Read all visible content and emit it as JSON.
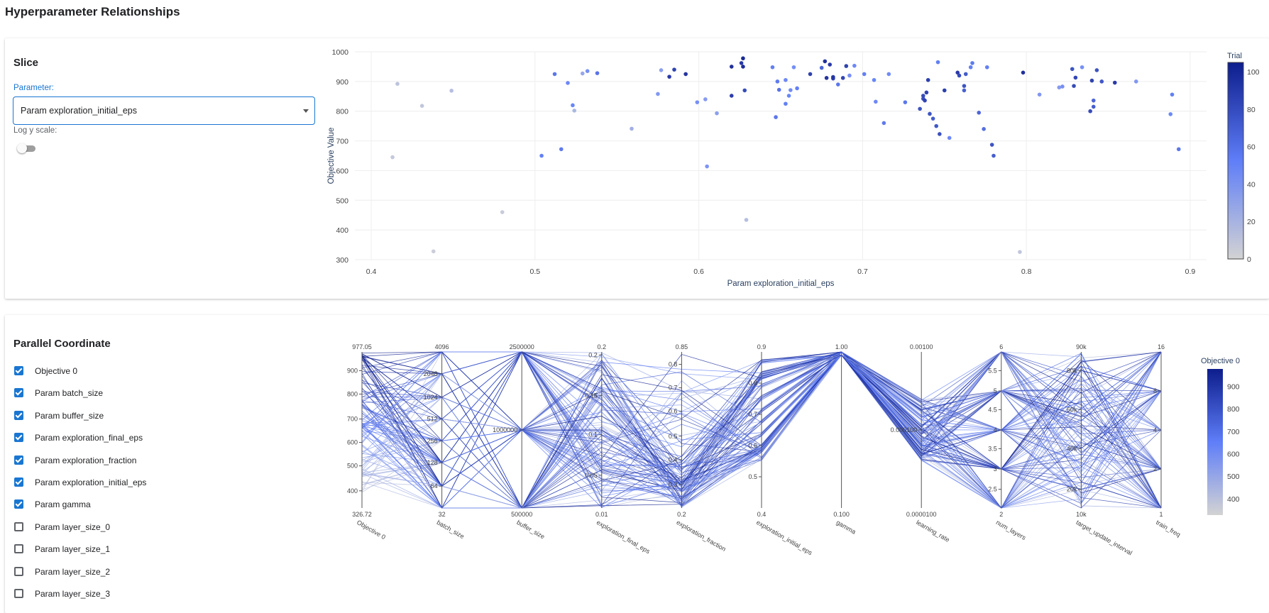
{
  "page_title": "Hyperparameter Relationships",
  "slice": {
    "title": "Slice",
    "parameter_label": "Parameter:",
    "selected_parameter": "Param exploration_initial_eps",
    "log_scale_label": "Log y scale:",
    "log_scale_on": false
  },
  "parallel": {
    "title": "Parallel Coordinate",
    "params": [
      {
        "label": "Objective 0",
        "checked": true
      },
      {
        "label": "Param batch_size",
        "checked": true
      },
      {
        "label": "Param buffer_size",
        "checked": true
      },
      {
        "label": "Param exploration_final_eps",
        "checked": true
      },
      {
        "label": "Param exploration_fraction",
        "checked": true
      },
      {
        "label": "Param exploration_initial_eps",
        "checked": true
      },
      {
        "label": "Param gamma",
        "checked": true
      },
      {
        "label": "Param layer_size_0",
        "checked": false
      },
      {
        "label": "Param layer_size_1",
        "checked": false
      },
      {
        "label": "Param layer_size_2",
        "checked": false
      },
      {
        "label": "Param layer_size_3",
        "checked": false
      }
    ]
  },
  "colors": {
    "accent": "#1976d2",
    "scale_low": "#d3d3d3",
    "scale_high": "#0d1d8c",
    "scale_mid": "#5f7ef8"
  },
  "chart_data": [
    {
      "type": "scatter",
      "xlabel": "Param exploration_initial_eps",
      "ylabel": "Objective Value",
      "xlim": [
        0.39,
        0.91
      ],
      "ylim": [
        300,
        1000
      ],
      "x_ticks": [
        "0.4",
        "0.5",
        "0.6",
        "0.7",
        "0.8",
        "0.9"
      ],
      "y_ticks": [
        "300",
        "400",
        "500",
        "600",
        "700",
        "800",
        "900",
        "1000"
      ],
      "grid": true,
      "colorbar": {
        "title": "Trial",
        "range": [
          0,
          105
        ],
        "ticks": [
          "0",
          "20",
          "40",
          "60",
          "80",
          "100"
        ]
      },
      "points": [
        {
          "x": 0.413,
          "y": 645,
          "t": 8
        },
        {
          "x": 0.416,
          "y": 892,
          "t": 12
        },
        {
          "x": 0.431,
          "y": 818,
          "t": 10
        },
        {
          "x": 0.438,
          "y": 328,
          "t": 5
        },
        {
          "x": 0.449,
          "y": 869,
          "t": 15
        },
        {
          "x": 0.48,
          "y": 460,
          "t": 7
        },
        {
          "x": 0.504,
          "y": 650,
          "t": 55
        },
        {
          "x": 0.512,
          "y": 925,
          "t": 60
        },
        {
          "x": 0.516,
          "y": 672,
          "t": 58
        },
        {
          "x": 0.52,
          "y": 895,
          "t": 50
        },
        {
          "x": 0.523,
          "y": 820,
          "t": 52
        },
        {
          "x": 0.524,
          "y": 802,
          "t": 20
        },
        {
          "x": 0.529,
          "y": 927,
          "t": 30
        },
        {
          "x": 0.532,
          "y": 935,
          "t": 45
        },
        {
          "x": 0.538,
          "y": 928,
          "t": 62
        },
        {
          "x": 0.559,
          "y": 741,
          "t": 25
        },
        {
          "x": 0.575,
          "y": 858,
          "t": 40
        },
        {
          "x": 0.577,
          "y": 938,
          "t": 35
        },
        {
          "x": 0.582,
          "y": 916,
          "t": 95
        },
        {
          "x": 0.585,
          "y": 940,
          "t": 90
        },
        {
          "x": 0.592,
          "y": 925,
          "t": 98
        },
        {
          "x": 0.599,
          "y": 830,
          "t": 45
        },
        {
          "x": 0.604,
          "y": 840,
          "t": 38
        },
        {
          "x": 0.605,
          "y": 614,
          "t": 42
        },
        {
          "x": 0.611,
          "y": 793,
          "t": 35
        },
        {
          "x": 0.62,
          "y": 852,
          "t": 92
        },
        {
          "x": 0.62,
          "y": 950,
          "t": 100
        },
        {
          "x": 0.626,
          "y": 962,
          "t": 96
        },
        {
          "x": 0.627,
          "y": 950,
          "t": 102
        },
        {
          "x": 0.627,
          "y": 978,
          "t": 104
        },
        {
          "x": 0.628,
          "y": 870,
          "t": 85
        },
        {
          "x": 0.629,
          "y": 434,
          "t": 15
        },
        {
          "x": 0.645,
          "y": 948,
          "t": 55
        },
        {
          "x": 0.647,
          "y": 780,
          "t": 60
        },
        {
          "x": 0.648,
          "y": 900,
          "t": 58
        },
        {
          "x": 0.649,
          "y": 872,
          "t": 62
        },
        {
          "x": 0.653,
          "y": 905,
          "t": 50
        },
        {
          "x": 0.653,
          "y": 825,
          "t": 55
        },
        {
          "x": 0.655,
          "y": 852,
          "t": 52
        },
        {
          "x": 0.656,
          "y": 871,
          "t": 48
        },
        {
          "x": 0.658,
          "y": 948,
          "t": 46
        },
        {
          "x": 0.66,
          "y": 877,
          "t": 55
        },
        {
          "x": 0.668,
          "y": 925,
          "t": 90
        },
        {
          "x": 0.675,
          "y": 946,
          "t": 70
        },
        {
          "x": 0.677,
          "y": 968,
          "t": 100
        },
        {
          "x": 0.678,
          "y": 912,
          "t": 98
        },
        {
          "x": 0.68,
          "y": 957,
          "t": 95
        },
        {
          "x": 0.682,
          "y": 915,
          "t": 96
        },
        {
          "x": 0.682,
          "y": 910,
          "t": 92
        },
        {
          "x": 0.685,
          "y": 890,
          "t": 60
        },
        {
          "x": 0.688,
          "y": 912,
          "t": 88
        },
        {
          "x": 0.69,
          "y": 952,
          "t": 90
        },
        {
          "x": 0.692,
          "y": 920,
          "t": 45
        },
        {
          "x": 0.695,
          "y": 953,
          "t": 50
        },
        {
          "x": 0.701,
          "y": 925,
          "t": 55
        },
        {
          "x": 0.707,
          "y": 905,
          "t": 52
        },
        {
          "x": 0.708,
          "y": 832,
          "t": 50
        },
        {
          "x": 0.713,
          "y": 760,
          "t": 58
        },
        {
          "x": 0.716,
          "y": 925,
          "t": 48
        },
        {
          "x": 0.726,
          "y": 830,
          "t": 60
        },
        {
          "x": 0.735,
          "y": 808,
          "t": 80
        },
        {
          "x": 0.737,
          "y": 852,
          "t": 85
        },
        {
          "x": 0.737,
          "y": 842,
          "t": 82
        },
        {
          "x": 0.738,
          "y": 836,
          "t": 88
        },
        {
          "x": 0.739,
          "y": 863,
          "t": 90
        },
        {
          "x": 0.74,
          "y": 905,
          "t": 92
        },
        {
          "x": 0.741,
          "y": 791,
          "t": 80
        },
        {
          "x": 0.743,
          "y": 775,
          "t": 75
        },
        {
          "x": 0.745,
          "y": 750,
          "t": 78
        },
        {
          "x": 0.746,
          "y": 965,
          "t": 55
        },
        {
          "x": 0.747,
          "y": 723,
          "t": 82
        },
        {
          "x": 0.75,
          "y": 870,
          "t": 92
        },
        {
          "x": 0.753,
          "y": 710,
          "t": 50
        },
        {
          "x": 0.758,
          "y": 930,
          "t": 95
        },
        {
          "x": 0.759,
          "y": 920,
          "t": 85
        },
        {
          "x": 0.762,
          "y": 885,
          "t": 80
        },
        {
          "x": 0.762,
          "y": 870,
          "t": 72
        },
        {
          "x": 0.763,
          "y": 925,
          "t": 76
        },
        {
          "x": 0.766,
          "y": 948,
          "t": 55
        },
        {
          "x": 0.767,
          "y": 962,
          "t": 58
        },
        {
          "x": 0.771,
          "y": 795,
          "t": 70
        },
        {
          "x": 0.774,
          "y": 740,
          "t": 65
        },
        {
          "x": 0.776,
          "y": 948,
          "t": 55
        },
        {
          "x": 0.779,
          "y": 687,
          "t": 80
        },
        {
          "x": 0.78,
          "y": 650,
          "t": 75
        },
        {
          "x": 0.796,
          "y": 326,
          "t": 10
        },
        {
          "x": 0.798,
          "y": 930,
          "t": 100
        },
        {
          "x": 0.808,
          "y": 856,
          "t": 40
        },
        {
          "x": 0.82,
          "y": 880,
          "t": 38
        },
        {
          "x": 0.822,
          "y": 883,
          "t": 45
        },
        {
          "x": 0.828,
          "y": 942,
          "t": 80
        },
        {
          "x": 0.829,
          "y": 885,
          "t": 85
        },
        {
          "x": 0.83,
          "y": 913,
          "t": 88
        },
        {
          "x": 0.834,
          "y": 948,
          "t": 45
        },
        {
          "x": 0.839,
          "y": 800,
          "t": 85
        },
        {
          "x": 0.84,
          "y": 903,
          "t": 90
        },
        {
          "x": 0.841,
          "y": 815,
          "t": 75
        },
        {
          "x": 0.841,
          "y": 836,
          "t": 70
        },
        {
          "x": 0.843,
          "y": 938,
          "t": 80
        },
        {
          "x": 0.846,
          "y": 900,
          "t": 78
        },
        {
          "x": 0.854,
          "y": 896,
          "t": 95
        },
        {
          "x": 0.867,
          "y": 900,
          "t": 40
        },
        {
          "x": 0.888,
          "y": 790,
          "t": 50
        },
        {
          "x": 0.889,
          "y": 856,
          "t": 55
        },
        {
          "x": 0.893,
          "y": 672,
          "t": 60
        }
      ]
    },
    {
      "type": "parallel_coordinates",
      "colorbar": {
        "title": "Objective 0",
        "range": [
          326.72,
          977.05
        ],
        "ticks": [
          "400",
          "500",
          "600",
          "700",
          "800",
          "900"
        ]
      },
      "axes": [
        {
          "name": "Objective 0",
          "min_label": "326.72",
          "max_label": "977.05",
          "ticks": [
            [
              "900",
              0.88
            ],
            [
              "800",
              0.73
            ],
            [
              "700",
              0.57
            ],
            [
              "600",
              0.42
            ],
            [
              "500",
              0.27
            ],
            [
              "400",
              0.11
            ]
          ]
        },
        {
          "name": "batch_size",
          "min_label": "32",
          "max_label": "4096",
          "ticks": [
            [
              "2048",
              0.86
            ],
            [
              "1024",
              0.71
            ],
            [
              "512",
              0.57
            ],
            [
              "256",
              0.43
            ],
            [
              "128",
              0.29
            ],
            [
              "64",
              0.14
            ]
          ]
        },
        {
          "name": "buffer_size",
          "min_label": "500000",
          "max_label": "2500000",
          "ticks": [
            [
              "1000000",
              0.5
            ]
          ]
        },
        {
          "name": "exploration_final_eps",
          "min_label": "0.01",
          "max_label": "0.2",
          "ticks": [
            [
              "0.2",
              0.98
            ],
            [
              "0.15",
              0.72
            ],
            [
              "0.1",
              0.47
            ],
            [
              "0.05",
              0.21
            ]
          ]
        },
        {
          "name": "exploration_fraction",
          "min_label": "0.2",
          "max_label": "0.85",
          "ticks": [
            [
              "0.8",
              0.92
            ],
            [
              "0.7",
              0.77
            ],
            [
              "0.6",
              0.62
            ],
            [
              "0.5",
              0.46
            ],
            [
              "0.4",
              0.31
            ],
            [
              "0.3",
              0.15
            ]
          ]
        },
        {
          "name": "exploration_initial_eps",
          "min_label": "0.4",
          "max_label": "0.9",
          "ticks": [
            [
              "0.8",
              0.8
            ],
            [
              "0.7",
              0.6
            ],
            [
              "0.6",
              0.4
            ],
            [
              "0.5",
              0.2
            ]
          ]
        },
        {
          "name": "gamma",
          "min_label": "0.100",
          "max_label": "1.00",
          "ticks": []
        },
        {
          "name": "learning_rate",
          "min_label": "0.0000100",
          "max_label": "0.00100",
          "ticks": [
            [
              "0.000100",
              0.5
            ]
          ]
        },
        {
          "name": "num_layers",
          "min_label": "2",
          "max_label": "6",
          "ticks": [
            [
              "5.5",
              0.88
            ],
            [
              "5",
              0.75
            ],
            [
              "4.5",
              0.63
            ],
            [
              "4",
              0.5
            ],
            [
              "3.5",
              0.38
            ],
            [
              "3",
              0.25
            ],
            [
              "2.5",
              0.12
            ]
          ]
        },
        {
          "name": "target_update_interval",
          "min_label": "10k",
          "max_label": "90k",
          "ticks": [
            [
              "80k",
              0.88
            ],
            [
              "60k",
              0.63
            ],
            [
              "40k",
              0.38
            ],
            [
              "20k",
              0.12
            ]
          ]
        },
        {
          "name": "train_freq",
          "min_label": "1",
          "max_label": "16",
          "ticks": [
            [
              "8",
              0.75
            ],
            [
              "4",
              0.5
            ],
            [
              "2",
              0.25
            ]
          ]
        }
      ]
    }
  ]
}
